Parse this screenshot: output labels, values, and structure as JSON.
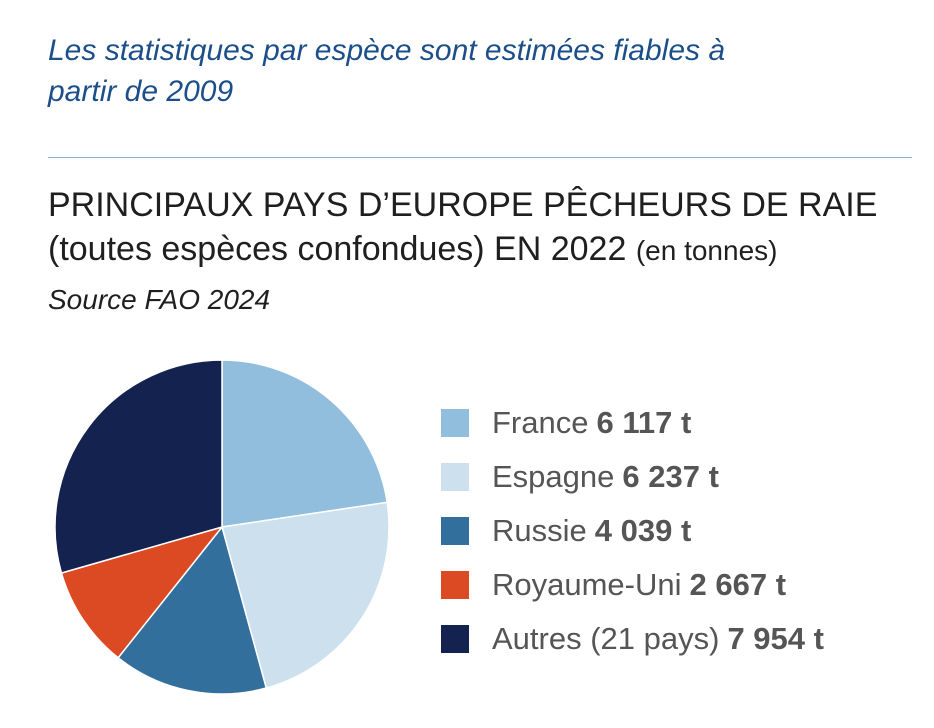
{
  "note": "Les statistiques par espèce sont estimées fiables à partir de 2009",
  "header": {
    "title_main": "PRINCIPAUX PAYS D’EUROPE PÊCHEURS DE RAIE (toutes espèces confondues) EN 2022",
    "title_unit": "(en tonnes)",
    "source": "Source FAO 2024"
  },
  "chart_data": {
    "type": "pie",
    "title": "PRINCIPAUX PAYS D’EUROPE PÊCHEURS DE RAIE (toutes espèces confondues) EN 2022 (en tonnes)",
    "categories": [
      "France",
      "Espagne",
      "Russie",
      "Royaume-Uni",
      "Autres (21 pays)"
    ],
    "values": [
      6117,
      6237,
      4039,
      2667,
      7954
    ],
    "value_labels": [
      "6 117 t",
      "6 237 t",
      "4 039 t",
      "2 667 t",
      "7 954 t"
    ],
    "colors": [
      "#92bede",
      "#cce0ee",
      "#336f9d",
      "#dc4a24",
      "#13224f"
    ],
    "legend": "right",
    "start": "top",
    "direction": "clockwise"
  },
  "colors": {
    "note_text": "#1c4f8a",
    "divider": "#8fb0d3",
    "title_text": "#1f1f1f",
    "legend_text": "#555555"
  }
}
